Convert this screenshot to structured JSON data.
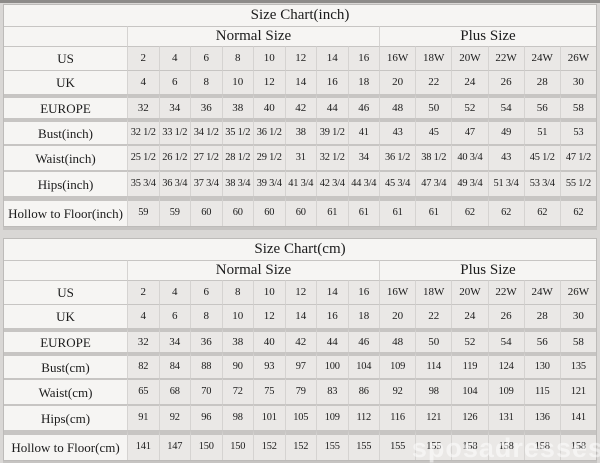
{
  "watermark": "sposadresses",
  "colors": {
    "page_background": "#d9d7d5",
    "cell_light": "#f6f5f3",
    "cell_data": "#eae8e6",
    "grid_line": "#c7c5c3",
    "text": "#1b1b1b",
    "top_strip": "#8d8b89",
    "watermark_text": "#ffffff"
  },
  "chart_data": [
    {
      "type": "table",
      "title": "Size Chart(inch)",
      "column_groups": [
        {
          "label": "Normal Size",
          "span": 8
        },
        {
          "label": "Plus Size",
          "span": 6
        }
      ],
      "rows": [
        {
          "label": "US",
          "normal": [
            "2",
            "4",
            "6",
            "8",
            "10",
            "12",
            "14",
            "16"
          ],
          "plus": [
            "16W",
            "18W",
            "20W",
            "22W",
            "24W",
            "26W"
          ]
        },
        {
          "label": "UK",
          "normal": [
            "4",
            "6",
            "8",
            "10",
            "12",
            "14",
            "16",
            "18"
          ],
          "plus": [
            "20",
            "22",
            "24",
            "26",
            "28",
            "30"
          ]
        },
        {
          "label": "EUROPE",
          "normal": [
            "32",
            "34",
            "36",
            "38",
            "40",
            "42",
            "44",
            "46"
          ],
          "plus": [
            "48",
            "50",
            "52",
            "54",
            "56",
            "58"
          ]
        },
        {
          "label": "Bust(inch)",
          "normal": [
            "32 1/2",
            "33 1/2",
            "34 1/2",
            "35 1/2",
            "36 1/2",
            "38",
            "39 1/2",
            "41"
          ],
          "plus": [
            "43",
            "45",
            "47",
            "49",
            "51",
            "53"
          ]
        },
        {
          "label": "Waist(inch)",
          "normal": [
            "25 1/2",
            "26 1/2",
            "27 1/2",
            "28 1/2",
            "29 1/2",
            "31",
            "32 1/2",
            "34"
          ],
          "plus": [
            "36 1/2",
            "38 1/2",
            "40 3/4",
            "43",
            "45 1/2",
            "47 1/2"
          ]
        },
        {
          "label": "Hips(inch)",
          "normal": [
            "35 3/4",
            "36 3/4",
            "37 3/4",
            "38 3/4",
            "39 3/4",
            "41 3/4",
            "42 3/4",
            "44 3/4"
          ],
          "plus": [
            "45 3/4",
            "47 3/4",
            "49 3/4",
            "51 3/4",
            "53 3/4",
            "55 1/2"
          ]
        },
        {
          "label": "Hollow to Floor(inch)",
          "normal": [
            "59",
            "59",
            "60",
            "60",
            "60",
            "60",
            "61",
            "61"
          ],
          "plus": [
            "61",
            "61",
            "62",
            "62",
            "62",
            "62"
          ]
        }
      ]
    },
    {
      "type": "table",
      "title": "Size Chart(cm)",
      "column_groups": [
        {
          "label": "Normal Size",
          "span": 8
        },
        {
          "label": "Plus Size",
          "span": 6
        }
      ],
      "rows": [
        {
          "label": "US",
          "normal": [
            "2",
            "4",
            "6",
            "8",
            "10",
            "12",
            "14",
            "16"
          ],
          "plus": [
            "16W",
            "18W",
            "20W",
            "22W",
            "24W",
            "26W"
          ]
        },
        {
          "label": "UK",
          "normal": [
            "4",
            "6",
            "8",
            "10",
            "12",
            "14",
            "16",
            "18"
          ],
          "plus": [
            "20",
            "22",
            "24",
            "26",
            "28",
            "30"
          ]
        },
        {
          "label": "EUROPE",
          "normal": [
            "32",
            "34",
            "36",
            "38",
            "40",
            "42",
            "44",
            "46"
          ],
          "plus": [
            "48",
            "50",
            "52",
            "54",
            "56",
            "58"
          ]
        },
        {
          "label": "Bust(cm)",
          "normal": [
            "82",
            "84",
            "88",
            "90",
            "93",
            "97",
            "100",
            "104"
          ],
          "plus": [
            "109",
            "114",
            "119",
            "124",
            "130",
            "135"
          ]
        },
        {
          "label": "Waist(cm)",
          "normal": [
            "65",
            "68",
            "70",
            "72",
            "75",
            "79",
            "83",
            "86"
          ],
          "plus": [
            "92",
            "98",
            "104",
            "109",
            "115",
            "121"
          ]
        },
        {
          "label": "Hips(cm)",
          "normal": [
            "91",
            "92",
            "96",
            "98",
            "101",
            "105",
            "109",
            "112"
          ],
          "plus": [
            "116",
            "121",
            "126",
            "131",
            "136",
            "141"
          ]
        },
        {
          "label": "Hollow to Floor(cm)",
          "normal": [
            "141",
            "147",
            "150",
            "150",
            "152",
            "152",
            "155",
            "155"
          ],
          "plus": [
            "155",
            "155",
            "158",
            "158",
            "158",
            "158"
          ]
        }
      ]
    }
  ]
}
